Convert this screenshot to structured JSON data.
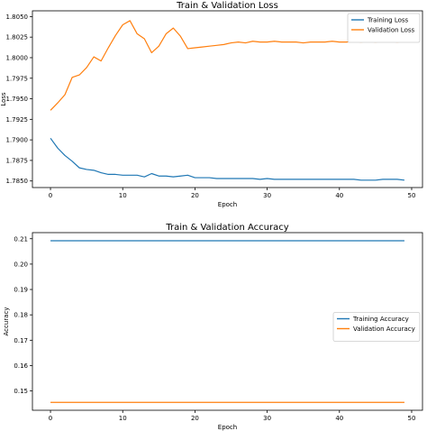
{
  "chart_data": [
    {
      "type": "line",
      "title": "Train & Validation Loss",
      "xlabel": "Epoch",
      "ylabel": "Loss",
      "xlim": [
        -2.5,
        51.5
      ],
      "ylim": [
        1.7842,
        1.8057
      ],
      "xticks": [
        0,
        10,
        20,
        30,
        40,
        50
      ],
      "yticks": [
        1.785,
        1.7875,
        1.79,
        1.7925,
        1.795,
        1.7975,
        1.8,
        1.8025,
        1.805
      ],
      "ytick_labels": [
        "1.7850",
        "1.7875",
        "1.7900",
        "1.7925",
        "1.7950",
        "1.7975",
        "1.8000",
        "1.8025",
        "1.8050"
      ],
      "legend": "top-right",
      "grid": false,
      "x": [
        0,
        1,
        2,
        3,
        4,
        5,
        6,
        7,
        8,
        9,
        10,
        11,
        12,
        13,
        14,
        15,
        16,
        17,
        18,
        19,
        20,
        21,
        22,
        23,
        24,
        25,
        26,
        27,
        28,
        29,
        30,
        31,
        32,
        33,
        34,
        35,
        36,
        37,
        38,
        39,
        40,
        41,
        42,
        43,
        44,
        45,
        46,
        47,
        48,
        49
      ],
      "series": [
        {
          "name": "Training Loss",
          "color": "#1f77b4",
          "values": [
            1.7902,
            1.789,
            1.7881,
            1.7874,
            1.7866,
            1.7864,
            1.7863,
            1.786,
            1.7858,
            1.7858,
            1.7857,
            1.7857,
            1.7857,
            1.7855,
            1.7859,
            1.7856,
            1.7856,
            1.7855,
            1.7856,
            1.7857,
            1.7854,
            1.7854,
            1.7854,
            1.7853,
            1.7853,
            1.7853,
            1.7853,
            1.7853,
            1.7853,
            1.7852,
            1.7853,
            1.7852,
            1.7852,
            1.7852,
            1.7852,
            1.7852,
            1.7852,
            1.7852,
            1.7852,
            1.7852,
            1.7852,
            1.7852,
            1.7852,
            1.7851,
            1.7851,
            1.7851,
            1.7852,
            1.7852,
            1.7852,
            1.7851
          ]
        },
        {
          "name": "Validation Loss",
          "color": "#ff7f0e",
          "values": [
            1.7936,
            1.7945,
            1.7955,
            1.7976,
            1.7979,
            1.7988,
            1.8001,
            1.7996,
            1.8012,
            1.8027,
            1.804,
            1.8045,
            1.8029,
            1.8023,
            1.8006,
            1.8014,
            1.8029,
            1.8036,
            1.8026,
            1.8011,
            1.8012,
            1.8013,
            1.8014,
            1.8015,
            1.8016,
            1.8018,
            1.8019,
            1.8018,
            1.802,
            1.8019,
            1.8019,
            1.802,
            1.8019,
            1.8019,
            1.8019,
            1.8018,
            1.8019,
            1.8019,
            1.8019,
            1.802,
            1.8019,
            1.8019,
            1.802,
            1.8019,
            1.802,
            1.8019,
            1.802,
            1.802,
            1.8019,
            1.802
          ]
        }
      ]
    },
    {
      "type": "line",
      "title": "Train & Validation Accuracy",
      "xlabel": "Epoch",
      "ylabel": "Accuracy",
      "xlim": [
        -2.5,
        51.5
      ],
      "ylim": [
        0.1424,
        0.2124
      ],
      "xticks": [
        0,
        10,
        20,
        30,
        40,
        50
      ],
      "yticks": [
        0.15,
        0.16,
        0.17,
        0.18,
        0.19,
        0.2,
        0.21
      ],
      "ytick_labels": [
        "0.15",
        "0.16",
        "0.17",
        "0.18",
        "0.19",
        "0.20",
        "0.21"
      ],
      "legend": "center-right",
      "grid": false,
      "x": [
        0,
        49
      ],
      "series": [
        {
          "name": "Training Accuracy",
          "color": "#1f77b4",
          "values": [
            0.2092,
            0.2092
          ]
        },
        {
          "name": "Validation Accuracy",
          "color": "#ff7f0e",
          "values": [
            0.1455,
            0.1455
          ]
        }
      ]
    }
  ]
}
